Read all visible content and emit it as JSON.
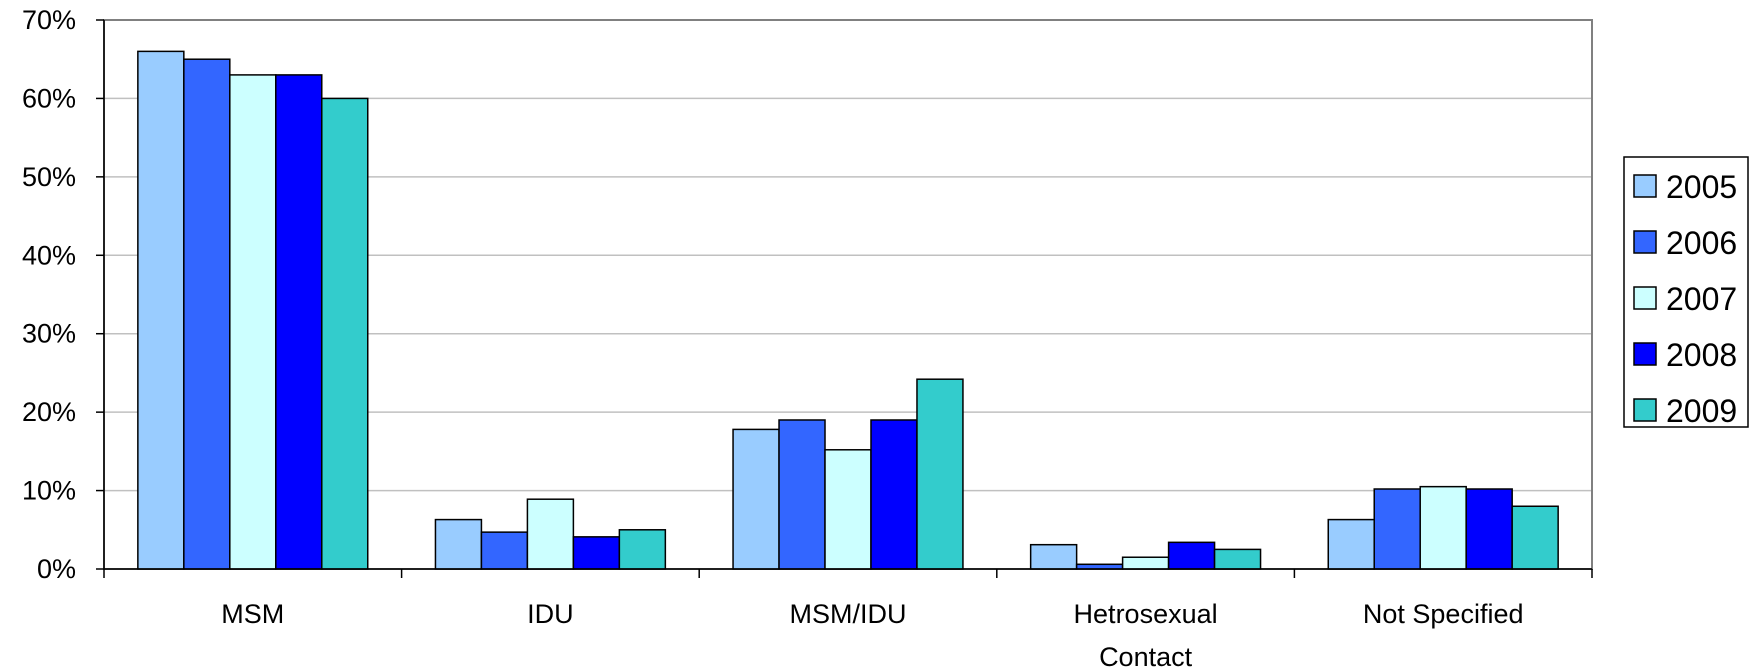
{
  "chart_data": {
    "type": "bar",
    "categories": [
      [
        "MSM"
      ],
      [
        "IDU"
      ],
      [
        "MSM/IDU"
      ],
      [
        "Hetrosexual",
        "Contact"
      ],
      [
        "Not Specified"
      ]
    ],
    "series": [
      {
        "name": "2005",
        "color": "#99ccff",
        "values": [
          66,
          6.3,
          17.8,
          3.1,
          6.3
        ]
      },
      {
        "name": "2006",
        "color": "#3366ff",
        "values": [
          65,
          4.7,
          19,
          0.6,
          10.2
        ]
      },
      {
        "name": "2007",
        "color": "#ccffff",
        "values": [
          63,
          8.9,
          15.2,
          1.5,
          10.5
        ]
      },
      {
        "name": "2008",
        "color": "#0000ff",
        "values": [
          63,
          4.1,
          19,
          3.4,
          10.2
        ]
      },
      {
        "name": "2009",
        "color": "#33cccc",
        "values": [
          60,
          5,
          24.2,
          2.5,
          8
        ]
      }
    ],
    "ylim": [
      0,
      70
    ],
    "yticks": [
      0,
      10,
      20,
      30,
      40,
      50,
      60,
      70
    ],
    "ytick_format": "{v}%",
    "grid": true,
    "legend_position": "right",
    "title": "",
    "xlabel": "",
    "ylabel": ""
  }
}
